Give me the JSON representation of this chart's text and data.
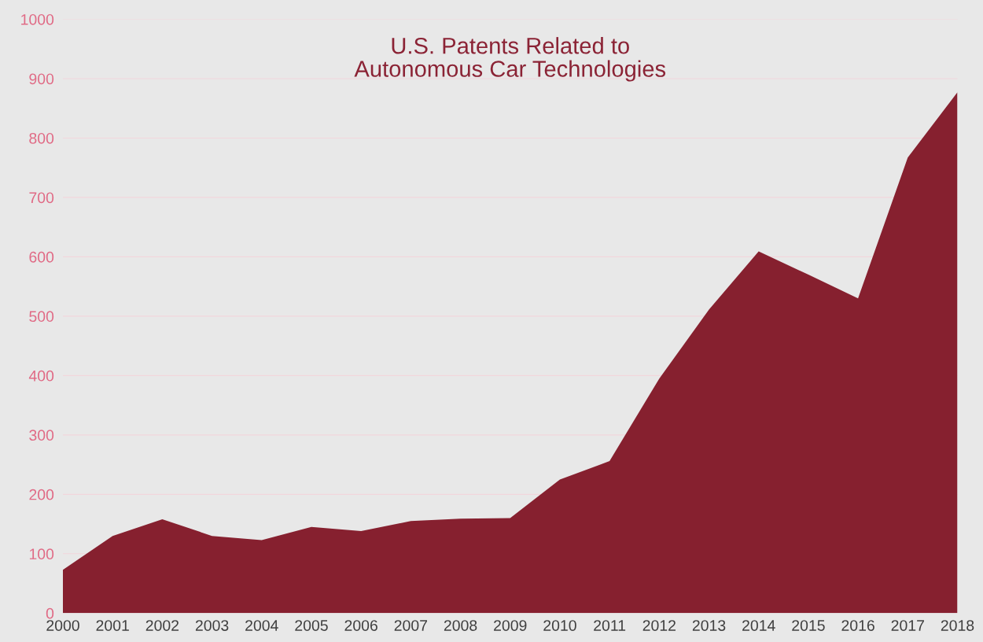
{
  "chart_data": {
    "type": "area",
    "title": "U.S. Patents Related to\nAutonomous Car Technologies",
    "x": [
      2000,
      2001,
      2002,
      2003,
      2004,
      2005,
      2006,
      2007,
      2008,
      2009,
      2010,
      2011,
      2012,
      2013,
      2014,
      2015,
      2016,
      2017,
      2018
    ],
    "series": [
      {
        "color": "#86202f",
        "values": [
          73,
          130,
          158,
          130,
          123,
          145,
          138,
          155,
          159,
          160,
          225,
          256,
          395,
          511,
          609,
          570,
          530,
          767,
          877
        ]
      }
    ],
    "xlim": [
      2000,
      2018
    ],
    "xticks": [
      2000,
      2001,
      2002,
      2003,
      2004,
      2005,
      2006,
      2007,
      2008,
      2009,
      2010,
      2011,
      2012,
      2013,
      2014,
      2015,
      2016,
      2017,
      2018
    ],
    "ylim": [
      0,
      1000
    ],
    "yticks": [
      0,
      100,
      200,
      300,
      400,
      500,
      600,
      700,
      800,
      900,
      1000
    ],
    "grid": "y",
    "legend": false
  }
}
